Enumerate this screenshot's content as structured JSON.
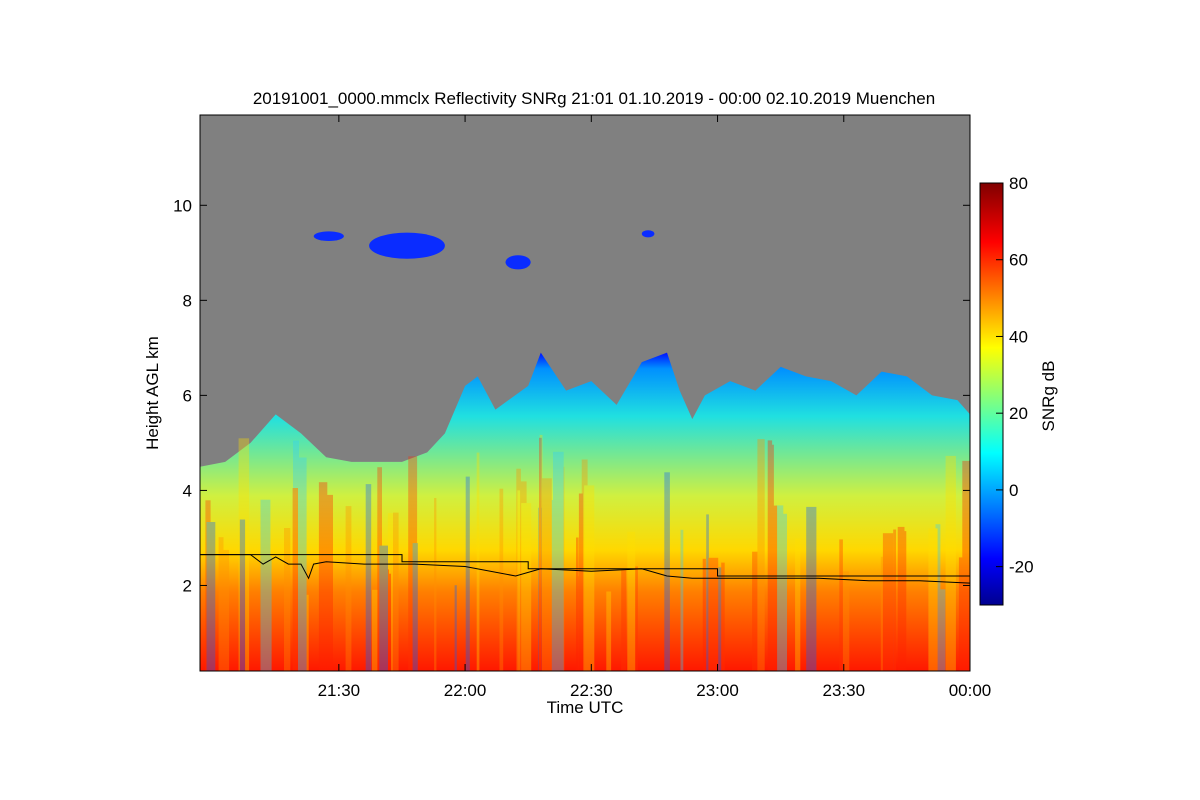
{
  "chart_data": {
    "type": "heatmap",
    "title": "20191001_0000.mmclx Reflectivity SNRg   21:01 01.10.2019 - 00:00 02.10.2019 Muenchen",
    "xlabel": "Time UTC",
    "ylabel": "Height AGL km",
    "x_ticks": [
      "21:30",
      "22:00",
      "22:30",
      "23:00",
      "23:30",
      "00:00"
    ],
    "x_tick_hours": [
      21.5,
      22.0,
      22.5,
      23.0,
      23.5,
      24.0
    ],
    "xlim_hours": [
      20.95,
      24.0
    ],
    "y_ticks": [
      2,
      4,
      6,
      8,
      10
    ],
    "ylim": [
      0.2,
      11.9
    ],
    "colorbar": {
      "label": "SNRg dB",
      "ticks": [
        80,
        60,
        40,
        20,
        0,
        -20
      ],
      "range": [
        -30,
        80
      ]
    },
    "no_signal_color": "#808080",
    "cloud_top_km": [
      [
        20.95,
        4.5
      ],
      [
        21.05,
        4.6
      ],
      [
        21.15,
        5.0
      ],
      [
        21.25,
        5.6
      ],
      [
        21.35,
        5.2
      ],
      [
        21.45,
        4.7
      ],
      [
        21.55,
        4.6
      ],
      [
        21.65,
        4.6
      ],
      [
        21.75,
        4.6
      ],
      [
        21.85,
        4.8
      ],
      [
        21.92,
        5.2
      ],
      [
        22.0,
        6.2
      ],
      [
        22.05,
        6.4
      ],
      [
        22.12,
        5.7
      ],
      [
        22.25,
        6.2
      ],
      [
        22.3,
        6.9
      ],
      [
        22.4,
        6.1
      ],
      [
        22.5,
        6.3
      ],
      [
        22.6,
        5.8
      ],
      [
        22.7,
        6.7
      ],
      [
        22.8,
        6.9
      ],
      [
        22.85,
        6.1
      ],
      [
        22.9,
        5.5
      ],
      [
        22.95,
        6.0
      ],
      [
        23.05,
        6.3
      ],
      [
        23.15,
        6.1
      ],
      [
        23.25,
        6.6
      ],
      [
        23.35,
        6.4
      ],
      [
        23.45,
        6.3
      ],
      [
        23.55,
        6.0
      ],
      [
        23.65,
        6.5
      ],
      [
        23.75,
        6.4
      ],
      [
        23.85,
        6.0
      ],
      [
        23.95,
        5.9
      ],
      [
        24.0,
        5.6
      ]
    ],
    "upper_cloud_patches": [
      {
        "x": 21.4,
        "y": 9.35,
        "w": 0.12,
        "h": 0.2
      },
      {
        "x": 21.62,
        "y": 9.15,
        "w": 0.3,
        "h": 0.55
      },
      {
        "x": 22.16,
        "y": 8.8,
        "w": 0.1,
        "h": 0.3
      },
      {
        "x": 22.7,
        "y": 9.4,
        "w": 0.05,
        "h": 0.15
      }
    ],
    "series": [
      {
        "x": [
          20.95,
          21.15,
          21.2,
          21.25,
          21.3,
          21.35,
          21.38,
          21.4,
          21.45,
          21.6,
          21.8,
          22.0,
          22.2,
          22.3,
          22.5,
          22.7,
          22.8,
          22.9,
          23.0,
          23.2,
          23.4,
          23.6,
          23.8,
          24.0
        ],
        "y": [
          2.65,
          2.65,
          2.45,
          2.6,
          2.45,
          2.45,
          2.15,
          2.45,
          2.5,
          2.45,
          2.45,
          2.4,
          2.2,
          2.35,
          2.3,
          2.35,
          2.2,
          2.15,
          2.15,
          2.15,
          2.15,
          2.1,
          2.1,
          2.05
        ]
      },
      {
        "x": [
          20.95,
          21.75,
          21.75,
          22.25,
          22.25,
          23.0,
          23.0,
          24.0
        ],
        "y": [
          2.65,
          2.65,
          2.5,
          2.5,
          2.35,
          2.35,
          2.2,
          2.2
        ]
      }
    ]
  }
}
